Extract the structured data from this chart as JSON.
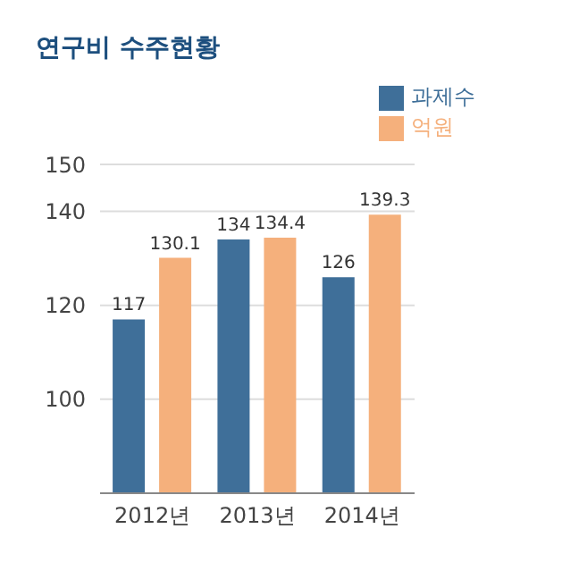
{
  "chart_data": {
    "type": "bar",
    "title": "연구비 수주현황",
    "categories": [
      "2012년",
      "2013년",
      "2014년"
    ],
    "series": [
      {
        "name": "과제수",
        "color": "#3f6f99",
        "values": [
          117,
          134,
          126
        ]
      },
      {
        "name": "억원",
        "color": "#f5b07c",
        "values": [
          130.1,
          134.4,
          139.3
        ]
      }
    ],
    "ylim": [
      80,
      150
    ],
    "yticks": [
      100,
      120,
      140,
      150
    ],
    "grid": "y",
    "legend": "top right",
    "data_labels": true
  }
}
